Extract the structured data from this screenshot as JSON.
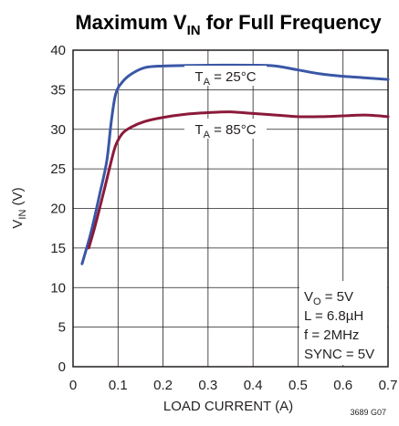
{
  "chart_data": {
    "type": "line",
    "title": {
      "prefix": "Maximum V",
      "sub": "IN",
      "suffix": " for Full Frequency"
    },
    "xlabel": "LOAD CURRENT (A)",
    "ylabel": {
      "main": "V",
      "sub": "IN",
      "suffix": " (V)"
    },
    "xlim": [
      0,
      0.7
    ],
    "ylim": [
      0,
      40
    ],
    "xticks": [
      "0",
      "0.1",
      "0.2",
      "0.3",
      "0.4",
      "0.5",
      "0.6",
      "0.7"
    ],
    "yticks": [
      "0",
      "5",
      "10",
      "15",
      "20",
      "25",
      "30",
      "35",
      "40"
    ],
    "grid": true,
    "series": [
      {
        "label": {
          "main": "T",
          "sub": "A",
          "suffix": " = 25°C"
        },
        "color": "#3a57a6",
        "points": [
          [
            0.02,
            13
          ],
          [
            0.04,
            17
          ],
          [
            0.06,
            22
          ],
          [
            0.075,
            26
          ],
          [
            0.085,
            31
          ],
          [
            0.095,
            34.5
          ],
          [
            0.11,
            36
          ],
          [
            0.13,
            37
          ],
          [
            0.16,
            37.8
          ],
          [
            0.2,
            38
          ],
          [
            0.3,
            38.1
          ],
          [
            0.4,
            38.1
          ],
          [
            0.45,
            38
          ],
          [
            0.5,
            37.5
          ],
          [
            0.55,
            37
          ],
          [
            0.6,
            36.7
          ],
          [
            0.65,
            36.5
          ],
          [
            0.7,
            36.3
          ]
        ]
      },
      {
        "label": {
          "main": "T",
          "sub": "A",
          "suffix": " = 85°C"
        },
        "color": "#8b1a3a",
        "points": [
          [
            0.035,
            15
          ],
          [
            0.05,
            18
          ],
          [
            0.07,
            22.5
          ],
          [
            0.085,
            26
          ],
          [
            0.095,
            28
          ],
          [
            0.11,
            29.5
          ],
          [
            0.13,
            30.3
          ],
          [
            0.16,
            31
          ],
          [
            0.2,
            31.5
          ],
          [
            0.25,
            31.9
          ],
          [
            0.3,
            32.1
          ],
          [
            0.35,
            32.2
          ],
          [
            0.4,
            32
          ],
          [
            0.45,
            31.8
          ],
          [
            0.5,
            31.6
          ],
          [
            0.55,
            31.6
          ],
          [
            0.6,
            31.7
          ],
          [
            0.65,
            31.8
          ],
          [
            0.7,
            31.6
          ]
        ]
      }
    ],
    "conditions": [
      {
        "main": "V",
        "sub": "O",
        "suffix": " = 5V"
      },
      {
        "main": "L = 6.8µH",
        "sub": "",
        "suffix": ""
      },
      {
        "main": "f = 2MHz",
        "sub": "",
        "suffix": ""
      },
      {
        "main": "SYNC = 5V",
        "sub": "",
        "suffix": ""
      }
    ],
    "figure_id": "3689 G07"
  }
}
